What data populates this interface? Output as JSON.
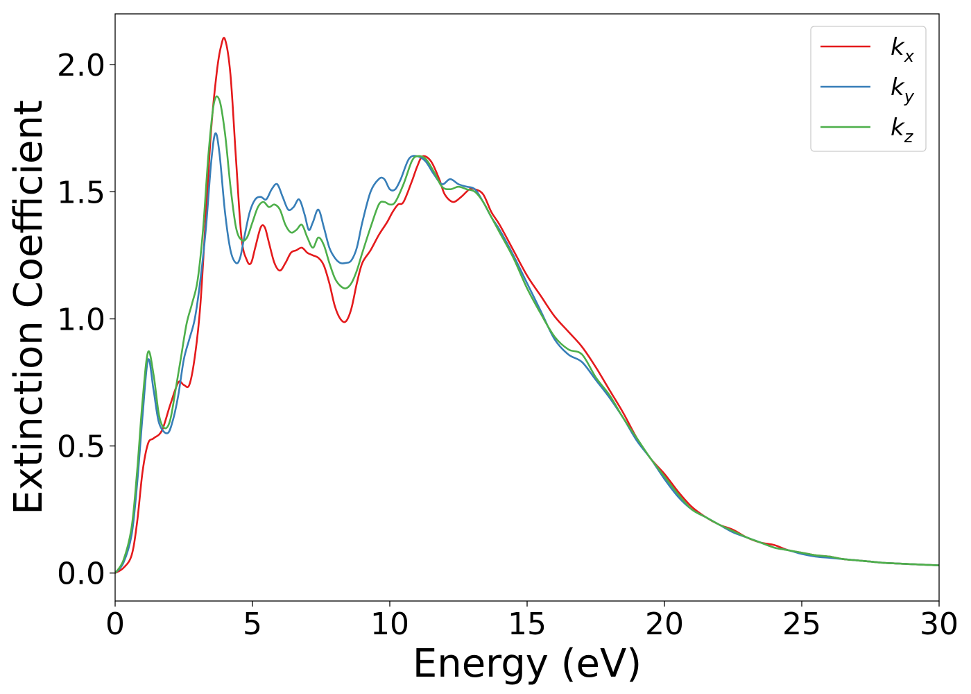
{
  "chart_data": {
    "type": "line",
    "title": "",
    "xlabel": "Energy (eV)",
    "ylabel": "Extinction Coefficient",
    "xlim": [
      0,
      30
    ],
    "ylim": [
      -0.11,
      2.2
    ],
    "xticks": [
      0,
      5,
      10,
      15,
      20,
      25,
      30
    ],
    "xtick_labels": [
      "0",
      "5",
      "10",
      "15",
      "20",
      "25",
      "30"
    ],
    "yticks": [
      0.0,
      0.5,
      1.0,
      1.5,
      2.0
    ],
    "ytick_labels": [
      "0.0",
      "0.5",
      "1.0",
      "1.5",
      "2.0"
    ],
    "grid": false,
    "legend_position": "top-right",
    "series": [
      {
        "name": "k",
        "subscript": "x",
        "color": "#e41a1c",
        "x": [
          0,
          0.3,
          0.6,
          0.8,
          1.0,
          1.2,
          1.4,
          1.7,
          2.0,
          2.3,
          2.5,
          2.7,
          2.9,
          3.1,
          3.3,
          3.5,
          3.7,
          3.85,
          4.0,
          4.2,
          4.4,
          4.6,
          4.8,
          4.95,
          5.1,
          5.3,
          5.45,
          5.6,
          5.8,
          6.0,
          6.2,
          6.4,
          6.6,
          6.8,
          7.0,
          7.2,
          7.4,
          7.6,
          7.8,
          8.0,
          8.2,
          8.4,
          8.6,
          8.8,
          9.0,
          9.3,
          9.6,
          9.9,
          10.1,
          10.3,
          10.5,
          10.8,
          11.0,
          11.2,
          11.5,
          11.8,
          12.0,
          12.3,
          12.6,
          12.9,
          13.1,
          13.4,
          13.7,
          14.0,
          14.5,
          15.0,
          15.5,
          16.0,
          16.5,
          17.0,
          17.5,
          18.0,
          18.5,
          19.0,
          19.5,
          20.0,
          20.5,
          21.0,
          21.5,
          22.0,
          22.5,
          23.0,
          23.5,
          24.0,
          24.5,
          25.0,
          25.5,
          26.0,
          26.5,
          27.0,
          27.5,
          28.0,
          29.0,
          30.0
        ],
        "y": [
          0.0,
          0.02,
          0.07,
          0.2,
          0.4,
          0.51,
          0.53,
          0.56,
          0.66,
          0.75,
          0.74,
          0.74,
          0.85,
          1.05,
          1.4,
          1.75,
          1.97,
          2.07,
          2.1,
          1.96,
          1.63,
          1.32,
          1.23,
          1.22,
          1.28,
          1.36,
          1.36,
          1.3,
          1.22,
          1.19,
          1.22,
          1.26,
          1.27,
          1.28,
          1.26,
          1.25,
          1.24,
          1.21,
          1.14,
          1.05,
          1.0,
          0.99,
          1.04,
          1.14,
          1.22,
          1.27,
          1.33,
          1.38,
          1.42,
          1.45,
          1.46,
          1.54,
          1.6,
          1.64,
          1.62,
          1.55,
          1.49,
          1.46,
          1.48,
          1.51,
          1.51,
          1.49,
          1.42,
          1.37,
          1.27,
          1.17,
          1.09,
          1.01,
          0.95,
          0.89,
          0.81,
          0.72,
          0.63,
          0.53,
          0.45,
          0.39,
          0.32,
          0.26,
          0.22,
          0.19,
          0.17,
          0.14,
          0.12,
          0.11,
          0.09,
          0.08,
          0.07,
          0.065,
          0.055,
          0.05,
          0.045,
          0.04,
          0.035,
          0.03
        ]
      },
      {
        "name": "k",
        "subscript": "y",
        "color": "#377eb8",
        "x": [
          0,
          0.3,
          0.6,
          0.8,
          1.0,
          1.2,
          1.4,
          1.6,
          1.9,
          2.1,
          2.3,
          2.5,
          2.7,
          2.9,
          3.1,
          3.3,
          3.5,
          3.65,
          3.8,
          4.0,
          4.2,
          4.4,
          4.55,
          4.7,
          4.9,
          5.1,
          5.3,
          5.5,
          5.7,
          5.9,
          6.1,
          6.3,
          6.5,
          6.7,
          6.9,
          7.05,
          7.2,
          7.4,
          7.6,
          7.8,
          8.0,
          8.2,
          8.4,
          8.6,
          8.8,
          9.0,
          9.3,
          9.6,
          9.8,
          10.0,
          10.2,
          10.4,
          10.7,
          11.0,
          11.3,
          11.6,
          11.9,
          12.2,
          12.5,
          12.8,
          13.1,
          13.4,
          13.7,
          14.0,
          14.5,
          15.0,
          15.5,
          16.0,
          16.5,
          17.0,
          17.5,
          18.0,
          18.5,
          19.0,
          19.5,
          20.0,
          20.5,
          21.0,
          21.5,
          22.0,
          22.5,
          23.0,
          23.5,
          24.0,
          24.5,
          25.0,
          25.5,
          26.0,
          26.5,
          27.0,
          27.5,
          28.0,
          29.0,
          30.0
        ],
        "y": [
          0.0,
          0.04,
          0.15,
          0.35,
          0.62,
          0.84,
          0.72,
          0.59,
          0.55,
          0.6,
          0.7,
          0.84,
          0.92,
          1.0,
          1.15,
          1.35,
          1.62,
          1.73,
          1.65,
          1.42,
          1.27,
          1.22,
          1.24,
          1.32,
          1.42,
          1.47,
          1.48,
          1.47,
          1.51,
          1.53,
          1.48,
          1.43,
          1.44,
          1.47,
          1.41,
          1.35,
          1.38,
          1.43,
          1.36,
          1.28,
          1.24,
          1.22,
          1.22,
          1.23,
          1.28,
          1.38,
          1.5,
          1.55,
          1.55,
          1.51,
          1.51,
          1.55,
          1.63,
          1.64,
          1.62,
          1.57,
          1.53,
          1.55,
          1.53,
          1.52,
          1.51,
          1.46,
          1.4,
          1.35,
          1.25,
          1.14,
          1.03,
          0.92,
          0.86,
          0.83,
          0.76,
          0.69,
          0.61,
          0.52,
          0.45,
          0.37,
          0.3,
          0.25,
          0.22,
          0.19,
          0.16,
          0.14,
          0.12,
          0.1,
          0.09,
          0.075,
          0.065,
          0.06,
          0.055,
          0.05,
          0.045,
          0.04,
          0.035,
          0.03
        ]
      },
      {
        "name": "k",
        "subscript": "z",
        "color": "#4daf4a",
        "x": [
          0,
          0.3,
          0.6,
          0.8,
          1.0,
          1.2,
          1.4,
          1.6,
          1.8,
          2.0,
          2.2,
          2.4,
          2.6,
          2.8,
          3.0,
          3.2,
          3.4,
          3.6,
          3.8,
          4.0,
          4.2,
          4.4,
          4.6,
          4.8,
          5.0,
          5.2,
          5.4,
          5.6,
          5.8,
          6.0,
          6.2,
          6.4,
          6.6,
          6.8,
          7.0,
          7.2,
          7.4,
          7.6,
          7.8,
          8.0,
          8.2,
          8.4,
          8.6,
          8.8,
          9.0,
          9.3,
          9.6,
          9.8,
          10.0,
          10.2,
          10.5,
          10.8,
          11.0,
          11.3,
          11.6,
          11.9,
          12.2,
          12.5,
          12.8,
          13.1,
          13.4,
          13.7,
          14.0,
          14.5,
          15.0,
          15.5,
          16.0,
          16.5,
          17.0,
          17.5,
          18.0,
          18.5,
          19.0,
          19.5,
          20.0,
          20.5,
          21.0,
          21.5,
          22.0,
          22.5,
          23.0,
          23.5,
          24.0,
          24.5,
          25.0,
          25.5,
          26.0,
          26.5,
          27.0,
          27.5,
          28.0,
          29.0,
          30.0
        ],
        "y": [
          0.0,
          0.05,
          0.18,
          0.4,
          0.68,
          0.87,
          0.78,
          0.62,
          0.57,
          0.6,
          0.72,
          0.85,
          0.98,
          1.06,
          1.15,
          1.35,
          1.65,
          1.85,
          1.86,
          1.73,
          1.52,
          1.36,
          1.31,
          1.32,
          1.38,
          1.44,
          1.46,
          1.44,
          1.45,
          1.43,
          1.37,
          1.34,
          1.35,
          1.37,
          1.32,
          1.28,
          1.32,
          1.29,
          1.22,
          1.16,
          1.13,
          1.12,
          1.14,
          1.19,
          1.26,
          1.36,
          1.45,
          1.46,
          1.45,
          1.46,
          1.53,
          1.62,
          1.64,
          1.63,
          1.58,
          1.52,
          1.51,
          1.52,
          1.51,
          1.5,
          1.46,
          1.4,
          1.34,
          1.24,
          1.12,
          1.02,
          0.93,
          0.88,
          0.86,
          0.77,
          0.7,
          0.61,
          0.53,
          0.45,
          0.38,
          0.31,
          0.25,
          0.22,
          0.19,
          0.165,
          0.14,
          0.12,
          0.1,
          0.09,
          0.08,
          0.07,
          0.065,
          0.055,
          0.05,
          0.045,
          0.04,
          0.035,
          0.03
        ]
      }
    ]
  }
}
